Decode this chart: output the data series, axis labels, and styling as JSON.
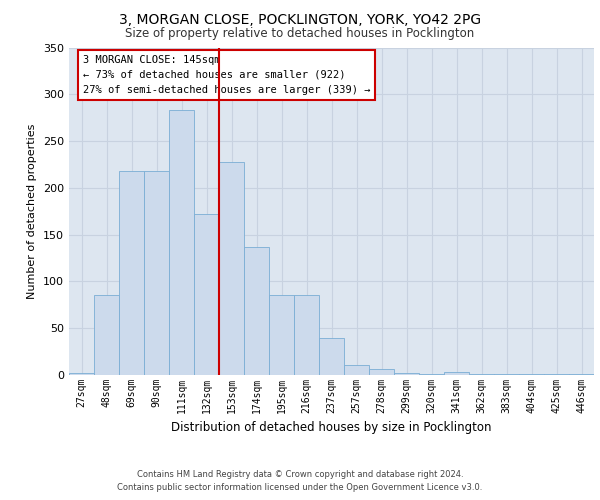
{
  "title1": "3, MORGAN CLOSE, POCKLINGTON, YORK, YO42 2PG",
  "title2": "Size of property relative to detached houses in Pocklington",
  "xlabel": "Distribution of detached houses by size in Pocklington",
  "ylabel": "Number of detached properties",
  "categories": [
    "27sqm",
    "48sqm",
    "69sqm",
    "90sqm",
    "111sqm",
    "132sqm",
    "153sqm",
    "174sqm",
    "195sqm",
    "216sqm",
    "237sqm",
    "257sqm",
    "278sqm",
    "299sqm",
    "320sqm",
    "341sqm",
    "362sqm",
    "383sqm",
    "404sqm",
    "425sqm",
    "446sqm"
  ],
  "values": [
    2,
    85,
    218,
    218,
    283,
    172,
    228,
    137,
    85,
    85,
    40,
    11,
    6,
    2,
    1,
    3,
    1,
    1,
    1,
    1,
    1
  ],
  "bar_color": "#ccdaec",
  "bar_edge_color": "#7aadd4",
  "vline_color": "#cc0000",
  "annotation_text": "3 MORGAN CLOSE: 145sqm\n← 73% of detached houses are smaller (922)\n27% of semi-detached houses are larger (339) →",
  "annotation_box_color": "#ffffff",
  "annotation_box_edge": "#cc0000",
  "grid_color": "#c8d2e0",
  "background_color": "#dde6f0",
  "footer1": "Contains HM Land Registry data © Crown copyright and database right 2024.",
  "footer2": "Contains public sector information licensed under the Open Government Licence v3.0.",
  "ylim": [
    0,
    350
  ],
  "yticks": [
    0,
    50,
    100,
    150,
    200,
    250,
    300,
    350
  ]
}
